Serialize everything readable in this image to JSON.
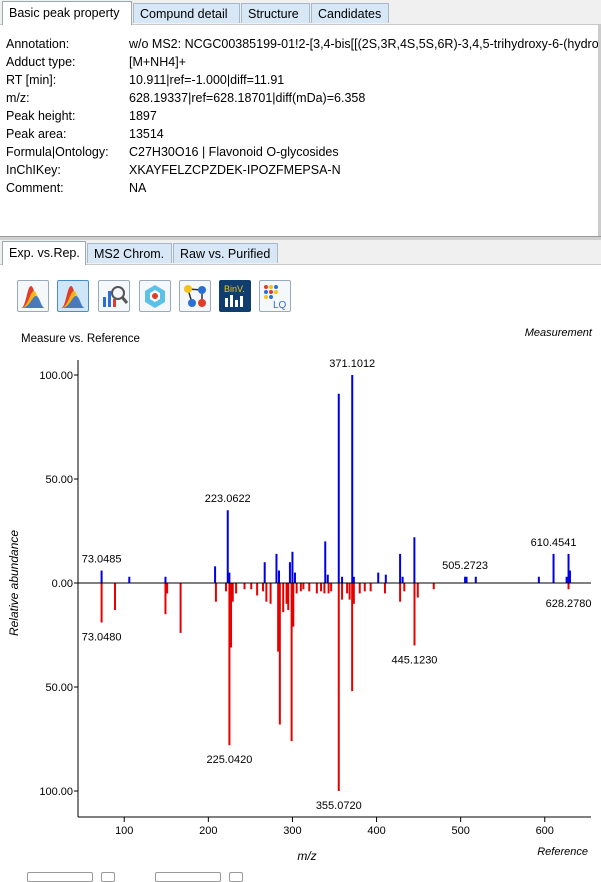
{
  "top_tabs": [
    "Basic peak property",
    "Compund detail",
    "Structure",
    "Candidates"
  ],
  "properties": [
    {
      "key": "Annotation:",
      "value": "w/o MS2: NCGC00385199-01!2-[3,4-bis[[(2S,3R,4S,5S,6R)-3,4,5-trihydroxy-6-(hydro"
    },
    {
      "key": "Adduct type:",
      "value": "[M+NH4]+"
    },
    {
      "key": "RT [min]:",
      "value": "10.911|ref=-1.000|diff=11.91"
    },
    {
      "key": "m/z:",
      "value": "628.19337|ref=628.18701|diff(mDa)=6.358"
    },
    {
      "key": "Peak height:",
      "value": "1897"
    },
    {
      "key": "Peak area:",
      "value": "13514"
    },
    {
      "key": "Formula|Ontology:",
      "value": "C27H30O16 | Flavonoid O-glycosides"
    },
    {
      "key": "InChIKey:",
      "value": "XKAYFELZCPZDEK-IPOZFMEPSA-N"
    },
    {
      "key": "Comment:",
      "value": "NA"
    }
  ],
  "bottom_tabs": [
    "Exp. vs.Rep.",
    "MS2 Chrom.",
    "Raw vs. Purified"
  ],
  "toolbar_icons": [
    "spectrum-overlay-icon",
    "spectrum-mirror-icon",
    "spectrum-search-icon",
    "molecule-view-icon",
    "network-icon",
    "binv-icon",
    "lq-icon"
  ],
  "toolbar_icon_labels": {
    "binv": "BinV.",
    "lq": "LQ"
  },
  "chart_data": {
    "type": "bar",
    "title": "Measure vs. Reference",
    "top_label": "Measurement",
    "bottom_label": "Reference",
    "xlabel": "m/z",
    "ylabel": "Relative abundance",
    "xlim": [
      45,
      655
    ],
    "ylim": [
      -100,
      100
    ],
    "x_ticks": [
      100,
      200,
      300,
      400,
      500,
      600
    ],
    "y_tick_labels": [
      {
        "v": 100,
        "t": "100.00"
      },
      {
        "v": 50,
        "t": "50.00"
      },
      {
        "v": 0,
        "t": "0.00"
      },
      {
        "v": -50,
        "t": "50.00"
      },
      {
        "v": -100,
        "t": "100.00"
      }
    ],
    "colors": {
      "measurement": "#0000e6",
      "reference": "#e60000"
    },
    "series": [
      {
        "name": "Measurement",
        "points": [
          [
            73.05,
            6
          ],
          [
            106,
            3
          ],
          [
            149,
            3
          ],
          [
            208,
            8
          ],
          [
            223.06,
            35
          ],
          [
            225,
            5
          ],
          [
            267,
            10
          ],
          [
            281,
            14
          ],
          [
            284,
            6
          ],
          [
            297,
            10
          ],
          [
            300,
            15
          ],
          [
            303,
            5
          ],
          [
            339,
            20
          ],
          [
            342,
            4
          ],
          [
            355.07,
            91
          ],
          [
            359,
            3
          ],
          [
            371.1,
            100
          ],
          [
            373,
            3
          ],
          [
            402,
            5
          ],
          [
            411,
            4
          ],
          [
            428,
            14
          ],
          [
            431,
            3
          ],
          [
            445,
            22
          ],
          [
            505.27,
            3
          ],
          [
            507,
            3
          ],
          [
            518,
            3
          ],
          [
            593,
            3
          ],
          [
            610.45,
            14
          ],
          [
            626,
            3
          ],
          [
            628.28,
            14
          ],
          [
            630,
            6
          ]
        ],
        "labels": [
          {
            "x": 73.05,
            "text": "73.0485"
          },
          {
            "x": 223.06,
            "text": "223.0622"
          },
          {
            "x": 371.1,
            "text": "371.1012"
          },
          {
            "x": 505.27,
            "text": "505.2723"
          },
          {
            "x": 610.45,
            "text": "610.4541"
          }
        ]
      },
      {
        "name": "Reference",
        "points": [
          [
            73.05,
            19
          ],
          [
            89,
            13
          ],
          [
            149,
            15
          ],
          [
            151,
            5
          ],
          [
            167,
            24
          ],
          [
            209,
            9
          ],
          [
            221,
            4
          ],
          [
            225.04,
            78
          ],
          [
            227,
            31
          ],
          [
            229,
            9
          ],
          [
            233,
            5
          ],
          [
            243,
            3
          ],
          [
            251,
            3
          ],
          [
            258,
            6
          ],
          [
            265,
            4
          ],
          [
            269,
            9
          ],
          [
            274,
            10
          ],
          [
            283,
            33
          ],
          [
            285,
            68
          ],
          [
            289,
            14
          ],
          [
            293,
            10
          ],
          [
            295,
            13
          ],
          [
            299,
            76
          ],
          [
            301,
            21
          ],
          [
            305,
            5
          ],
          [
            310,
            4
          ],
          [
            313,
            3
          ],
          [
            320,
            4
          ],
          [
            329,
            5
          ],
          [
            334,
            4
          ],
          [
            338,
            5
          ],
          [
            343,
            5
          ],
          [
            346,
            4
          ],
          [
            355.07,
            100
          ],
          [
            359,
            8
          ],
          [
            365,
            5
          ],
          [
            368,
            8
          ],
          [
            371,
            52
          ],
          [
            373,
            10
          ],
          [
            380,
            5
          ],
          [
            386,
            4
          ],
          [
            393,
            4
          ],
          [
            410,
            5
          ],
          [
            428,
            9
          ],
          [
            433,
            4
          ],
          [
            445.12,
            30
          ],
          [
            449,
            7
          ],
          [
            468,
            3
          ],
          [
            628.28,
            3
          ]
        ],
        "labels": [
          {
            "x": 73.05,
            "text": "73.0480"
          },
          {
            "x": 225.04,
            "text": "225.0420"
          },
          {
            "x": 355.07,
            "text": "355.0720"
          },
          {
            "x": 445.12,
            "text": "445.1230"
          },
          {
            "x": 628.28,
            "text": "628.2780"
          }
        ]
      }
    ]
  }
}
